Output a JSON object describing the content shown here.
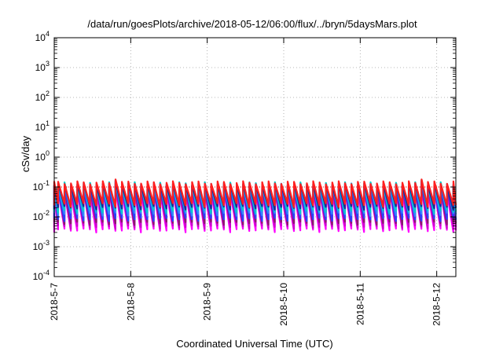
{
  "chart_data": {
    "type": "line",
    "title": "/data/run/goesPlots/archive/2018-05-12/06:00/flux/../bryn/5daysMars.plot",
    "xlabel": "Coordinated Universal Time (UTC)",
    "ylabel": "cSv/day",
    "y_scale": "log",
    "ylim": [
      0.0001,
      10000
    ],
    "y_ticks": [
      {
        "value": 0.0001,
        "base": "10",
        "exp": "-4"
      },
      {
        "value": 0.001,
        "base": "10",
        "exp": "-3"
      },
      {
        "value": 0.01,
        "base": "10",
        "exp": "-2"
      },
      {
        "value": 0.1,
        "base": "10",
        "exp": "-1"
      },
      {
        "value": 1,
        "base": "10",
        "exp": "0"
      },
      {
        "value": 10,
        "base": "10",
        "exp": "1"
      },
      {
        "value": 100,
        "base": "10",
        "exp": "2"
      },
      {
        "value": 1000,
        "base": "10",
        "exp": "3"
      },
      {
        "value": 10000,
        "base": "10",
        "exp": "4"
      }
    ],
    "xlim": [
      "2018-05-07T00:00",
      "2018-05-12T06:00"
    ],
    "x_ticks": [
      {
        "value": "2018-05-07T00:00",
        "label": "2018-5-7"
      },
      {
        "value": "2018-05-08T00:00",
        "label": "2018-5-8"
      },
      {
        "value": "2018-05-09T00:00",
        "label": "2018-5-9"
      },
      {
        "value": "2018-05-10T00:00",
        "label": "2018-5-10"
      },
      {
        "value": "2018-05-11T00:00",
        "label": "2018-5-11"
      },
      {
        "value": "2018-05-12T00:00",
        "label": "2018-5-12"
      }
    ],
    "grid": true,
    "legend": "none",
    "reference_line": {
      "y": 0.1,
      "color": "#ff0000",
      "style": "dotted"
    },
    "pattern": {
      "cycle_hours": 2.0,
      "series_colors": [
        "#ff00ff",
        "#cc00cc",
        "#8a1a6e",
        "#2a40ff",
        "#3388ff",
        "#00cccc",
        "#1a2a99",
        "#ff2020"
      ],
      "series_peak_values": [
        0.07,
        0.09,
        0.1,
        0.11,
        0.12,
        0.13,
        0.12,
        0.14
      ],
      "series_trough_values": [
        0.0035,
        0.0045,
        0.006,
        0.008,
        0.012,
        0.015,
        0.02,
        0.025
      ]
    },
    "gap_peaks": [
      {
        "date": "2018-05-07T20:00",
        "value": 0.17
      },
      {
        "date": "2018-05-11T19:30",
        "value": 0.16
      }
    ]
  }
}
